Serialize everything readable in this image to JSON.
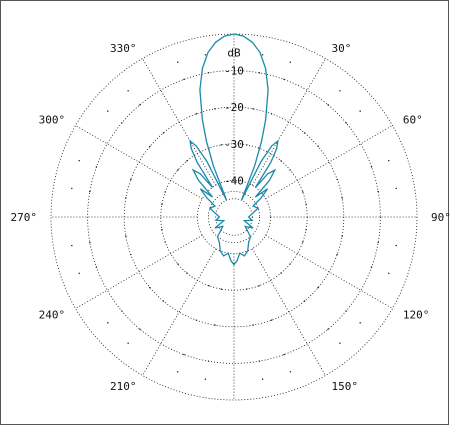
{
  "chart_data": {
    "type": "polar",
    "unit_label": "dB",
    "radial_ticks": [
      "-10",
      "-20",
      "-30",
      "-40"
    ],
    "radial_tick_values": [
      -10,
      -20,
      -30,
      -40
    ],
    "rlim": [
      -50,
      0
    ],
    "angle_labels": [
      "30°",
      "60°",
      "90°",
      "120°",
      "150°",
      "210°",
      "240°",
      "270°",
      "300°",
      "330°"
    ],
    "angle_values": [
      30,
      60,
      90,
      120,
      150,
      210,
      240,
      270,
      300,
      330
    ],
    "grid": true,
    "zero_direction": "top",
    "angular_direction": "clockwise",
    "series": [
      {
        "color": "#1a8aa8",
        "theta_deg": [
          0,
          3,
          6,
          9,
          12,
          15,
          18,
          20,
          22,
          24,
          26,
          28,
          30,
          32,
          34,
          36,
          38,
          41,
          44,
          47,
          50,
          55,
          60,
          70,
          80,
          90,
          100,
          110,
          120,
          130,
          140,
          150,
          158,
          165,
          171,
          176,
          180
        ],
        "r_db": [
          0,
          -0.5,
          -2,
          -4.5,
          -8.5,
          -14,
          -22,
          -28,
          -35,
          -45,
          -33,
          -28,
          -26,
          -28,
          -32,
          -40,
          -35,
          -33,
          -36,
          -42,
          -38,
          -41,
          -44,
          -43,
          -45,
          -46,
          -45,
          -47,
          -44,
          -46,
          -43,
          -42,
          -40,
          -39,
          -40,
          -38,
          -37
        ]
      }
    ]
  }
}
